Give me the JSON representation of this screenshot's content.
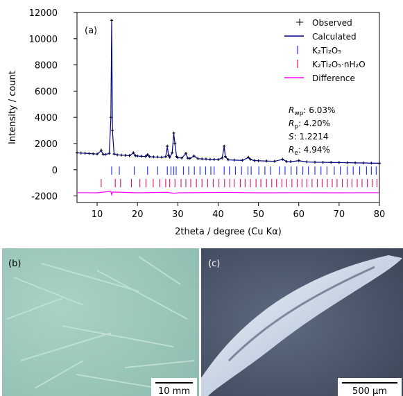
{
  "chart_data": {
    "type": "rietveld",
    "panel_label": "(a)",
    "xlabel": "2theta / degree (Cu Kα)",
    "ylabel": "Intensity / count",
    "xlim": [
      5,
      80
    ],
    "xticks": [
      10,
      20,
      30,
      40,
      50,
      60,
      70,
      80
    ],
    "ylim": [
      -2500,
      12000
    ],
    "yticks": [
      -2000,
      0,
      2000,
      4000,
      6000,
      8000,
      10000,
      12000
    ],
    "series": [
      {
        "name": "Observed",
        "kind": "plus",
        "color": "#000000",
        "x": [
          5,
          6,
          7,
          8,
          9,
          10,
          11,
          11.5,
          12,
          13,
          13.4,
          13.6,
          13.8,
          14.2,
          15,
          16,
          17,
          18,
          19,
          19.5,
          20,
          21,
          22,
          22.5,
          23,
          24,
          25,
          26,
          27,
          27.4,
          27.7,
          28,
          28.6,
          29,
          29.3,
          29.7,
          30,
          31,
          32,
          32.5,
          33,
          34,
          35,
          36,
          37,
          38,
          39,
          40,
          41,
          41.5,
          41.8,
          42.5,
          44,
          46,
          47.5,
          48,
          49,
          50,
          52,
          54,
          56,
          57,
          58,
          60,
          62,
          64,
          66,
          68,
          70,
          72,
          74,
          76,
          78,
          80
        ],
        "values": [
          1300,
          1280,
          1260,
          1240,
          1220,
          1200,
          1500,
          1180,
          1170,
          1250,
          4000,
          11400,
          3000,
          1200,
          1140,
          1120,
          1100,
          1080,
          1300,
          1070,
          1050,
          1030,
          1020,
          1150,
          1000,
          980,
          970,
          960,
          1000,
          1800,
          1100,
          950,
          1300,
          2800,
          2000,
          1000,
          920,
          900,
          1250,
          880,
          870,
          1050,
          850,
          830,
          820,
          800,
          790,
          780,
          900,
          1800,
          1000,
          760,
          740,
          720,
          950,
          800,
          700,
          690,
          670,
          650,
          800,
          630,
          620,
          700,
          600,
          580,
          570,
          560,
          550,
          540,
          530,
          520,
          510,
          500
        ]
      },
      {
        "name": "Calculated",
        "kind": "line",
        "color": "#000080",
        "x": [
          5,
          6,
          7,
          8,
          9,
          10,
          11,
          11.5,
          12,
          13,
          13.4,
          13.6,
          13.8,
          14.2,
          15,
          16,
          17,
          18,
          19,
          19.5,
          20,
          21,
          22,
          22.5,
          23,
          24,
          25,
          26,
          27,
          27.4,
          27.7,
          28,
          28.6,
          29,
          29.3,
          29.7,
          30,
          31,
          32,
          32.5,
          33,
          34,
          35,
          36,
          37,
          38,
          39,
          40,
          41,
          41.5,
          41.8,
          42.5,
          44,
          46,
          47.5,
          48,
          49,
          50,
          52,
          54,
          56,
          57,
          58,
          60,
          62,
          64,
          66,
          68,
          70,
          72,
          74,
          76,
          78,
          80
        ],
        "values": [
          1290,
          1275,
          1255,
          1235,
          1215,
          1195,
          1450,
          1175,
          1165,
          1240,
          3900,
          11300,
          2950,
          1195,
          1135,
          1115,
          1095,
          1075,
          1280,
          1065,
          1045,
          1025,
          1015,
          1130,
          995,
          975,
          965,
          955,
          990,
          1750,
          1090,
          945,
          1280,
          2750,
          1950,
          995,
          915,
          895,
          1230,
          875,
          865,
          1040,
          845,
          825,
          815,
          795,
          785,
          775,
          890,
          1760,
          990,
          755,
          735,
          715,
          930,
          790,
          695,
          685,
          665,
          645,
          790,
          625,
          615,
          690,
          595,
          575,
          565,
          555,
          545,
          535,
          525,
          515,
          505,
          495
        ]
      },
      {
        "name": "K₂Ti₂O₅",
        "kind": "reflections",
        "color": "#2a3bff",
        "x": [
          13.6,
          15.5,
          19.2,
          22.5,
          25.0,
          27.4,
          28.3,
          29.0,
          29.6,
          31.4,
          32.7,
          34.1,
          35.5,
          36.9,
          38.2,
          39.0,
          41.5,
          42.8,
          44.3,
          45.8,
          47.4,
          48.2,
          50.1,
          51.6,
          53.0,
          55.2,
          56.6,
          58.1,
          59.5,
          61.0,
          62.4,
          64.0,
          65.5,
          67.0,
          68.8,
          70.3,
          72.0,
          73.5,
          75.1,
          76.8,
          78.0,
          79.2
        ]
      },
      {
        "name": "K₂Ti₂O₅·nH₂O",
        "kind": "reflections",
        "color": "#e8206a",
        "x": [
          11.0,
          14.5,
          15.8,
          18.5,
          20.6,
          22.1,
          23.9,
          25.5,
          27.0,
          28.0,
          29.3,
          30.8,
          32.0,
          33.2,
          34.6,
          36.0,
          37.4,
          38.8,
          40.2,
          41.6,
          42.9,
          44.0,
          45.5,
          46.7,
          48.0,
          49.4,
          50.6,
          52.0,
          53.3,
          54.5,
          55.8,
          57.0,
          58.3,
          59.6,
          60.8,
          62.0,
          63.3,
          64.6,
          65.8,
          67.1,
          68.3,
          69.5,
          70.8,
          72.0,
          73.2,
          74.5,
          75.7,
          77.0,
          78.2,
          79.4
        ]
      },
      {
        "name": "Difference",
        "kind": "line",
        "color": "#ff00ff",
        "x": [
          5,
          10,
          13.4,
          13.6,
          13.8,
          20,
          27.4,
          29,
          30,
          41.5,
          50,
          60,
          70,
          80
        ],
        "values": [
          -1750,
          -1760,
          -1650,
          -1900,
          -1700,
          -1760,
          -1720,
          -1800,
          -1760,
          -1730,
          -1760,
          -1750,
          -1760,
          -1750
        ]
      }
    ],
    "annotations": [
      {
        "symbol": "R",
        "subscript": "wp",
        "text": ": 6.03%"
      },
      {
        "symbol": "R",
        "subscript": "p",
        "text": ":  4.20%"
      },
      {
        "symbol": "S",
        "subscript": "",
        "text": ":  1.2214"
      },
      {
        "symbol": "R",
        "subscript": "e",
        "text": ":  4.94%"
      }
    ]
  },
  "photos": [
    {
      "label": "(b)",
      "scale_bar": "10 mm"
    },
    {
      "label": "(c)",
      "scale_bar": "500 μm"
    }
  ]
}
